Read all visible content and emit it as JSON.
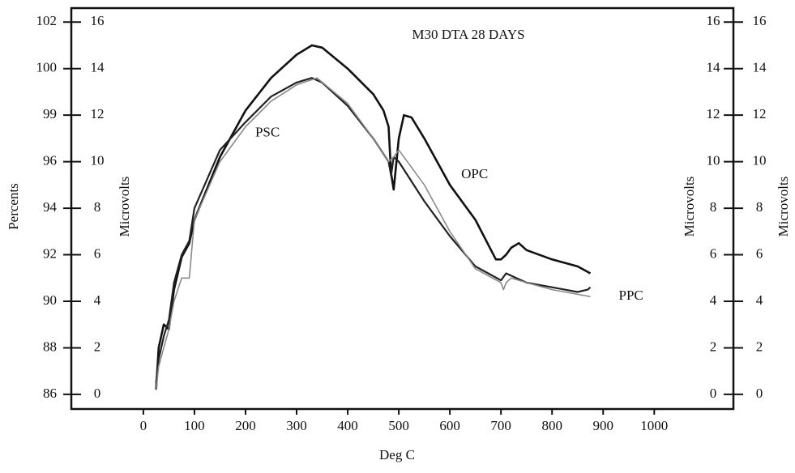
{
  "chart_data": {
    "type": "line",
    "title": "M30 DTA 28 DAYS",
    "xlabel": "Deg  C",
    "ylabel": "Microvolts",
    "percent_label": "Percents",
    "y2label": "Microvolts",
    "xlim": [
      -141,
      1155
    ],
    "xticks": [
      0,
      100,
      200,
      300,
      400,
      500,
      600,
      700,
      800,
      900,
      1000
    ],
    "ylim": [
      -0.63,
      16.6
    ],
    "yticks": [
      0,
      2,
      4,
      6,
      8,
      10,
      12,
      14,
      16
    ],
    "y2lim": [
      -0.63,
      16.6
    ],
    "y2ticks": [
      0,
      2,
      4,
      6,
      8,
      10,
      12,
      14,
      16
    ],
    "percent_ticks": [
      86,
      88,
      90,
      92,
      94,
      96,
      99,
      100,
      102
    ],
    "grid": false,
    "series": [
      {
        "name": "OPC",
        "color": "#111111",
        "x": [
          25,
          30,
          40,
          50,
          60,
          75,
          90,
          100,
          150,
          200,
          250,
          300,
          330,
          350,
          400,
          450,
          470,
          480,
          485,
          490,
          500,
          510,
          525,
          550,
          600,
          650,
          690,
          700,
          710,
          720,
          735,
          750,
          800,
          850,
          875
        ],
        "values": [
          0.2,
          2,
          3.0,
          2.8,
          4.5,
          5.9,
          6.5,
          7.5,
          10.2,
          12.2,
          13.6,
          14.6,
          15.0,
          14.9,
          14.0,
          12.9,
          12.2,
          11.5,
          9.5,
          8.8,
          11.0,
          12.0,
          11.9,
          11.0,
          9.0,
          7.5,
          5.8,
          5.8,
          6.0,
          6.3,
          6.5,
          6.2,
          5.8,
          5.5,
          5.2
        ]
      },
      {
        "name": "PSC",
        "color": "#222222",
        "x": [
          25,
          30,
          40,
          50,
          60,
          75,
          90,
          100,
          150,
          200,
          250,
          300,
          330,
          350,
          400,
          450,
          480,
          485,
          490,
          500,
          550,
          600,
          650,
          700,
          710,
          750,
          800,
          850,
          870,
          875
        ],
        "values": [
          0.5,
          1.5,
          2.5,
          3.2,
          4.8,
          6.0,
          6.6,
          8.0,
          10.5,
          11.7,
          12.8,
          13.4,
          13.6,
          13.4,
          12.4,
          11.0,
          10.0,
          9.4,
          10.2,
          10.0,
          8.3,
          6.8,
          5.5,
          4.9,
          5.2,
          4.8,
          4.6,
          4.4,
          4.5,
          4.6
        ]
      },
      {
        "name": "PPC",
        "color": "#8a8a8a",
        "x": [
          25,
          30,
          40,
          50,
          60,
          75,
          90,
          100,
          150,
          200,
          250,
          300,
          340,
          400,
          450,
          480,
          490,
          500,
          550,
          600,
          650,
          700,
          705,
          710,
          720,
          750,
          800,
          850,
          875
        ],
        "values": [
          0.2,
          1.2,
          2.0,
          2.8,
          4.0,
          5.0,
          5.0,
          7.5,
          10.0,
          11.5,
          12.6,
          13.3,
          13.6,
          12.5,
          11.0,
          10.0,
          10.2,
          10.5,
          9.0,
          7.0,
          5.4,
          4.8,
          4.5,
          4.8,
          5.0,
          4.8,
          4.5,
          4.3,
          4.2
        ]
      }
    ]
  }
}
